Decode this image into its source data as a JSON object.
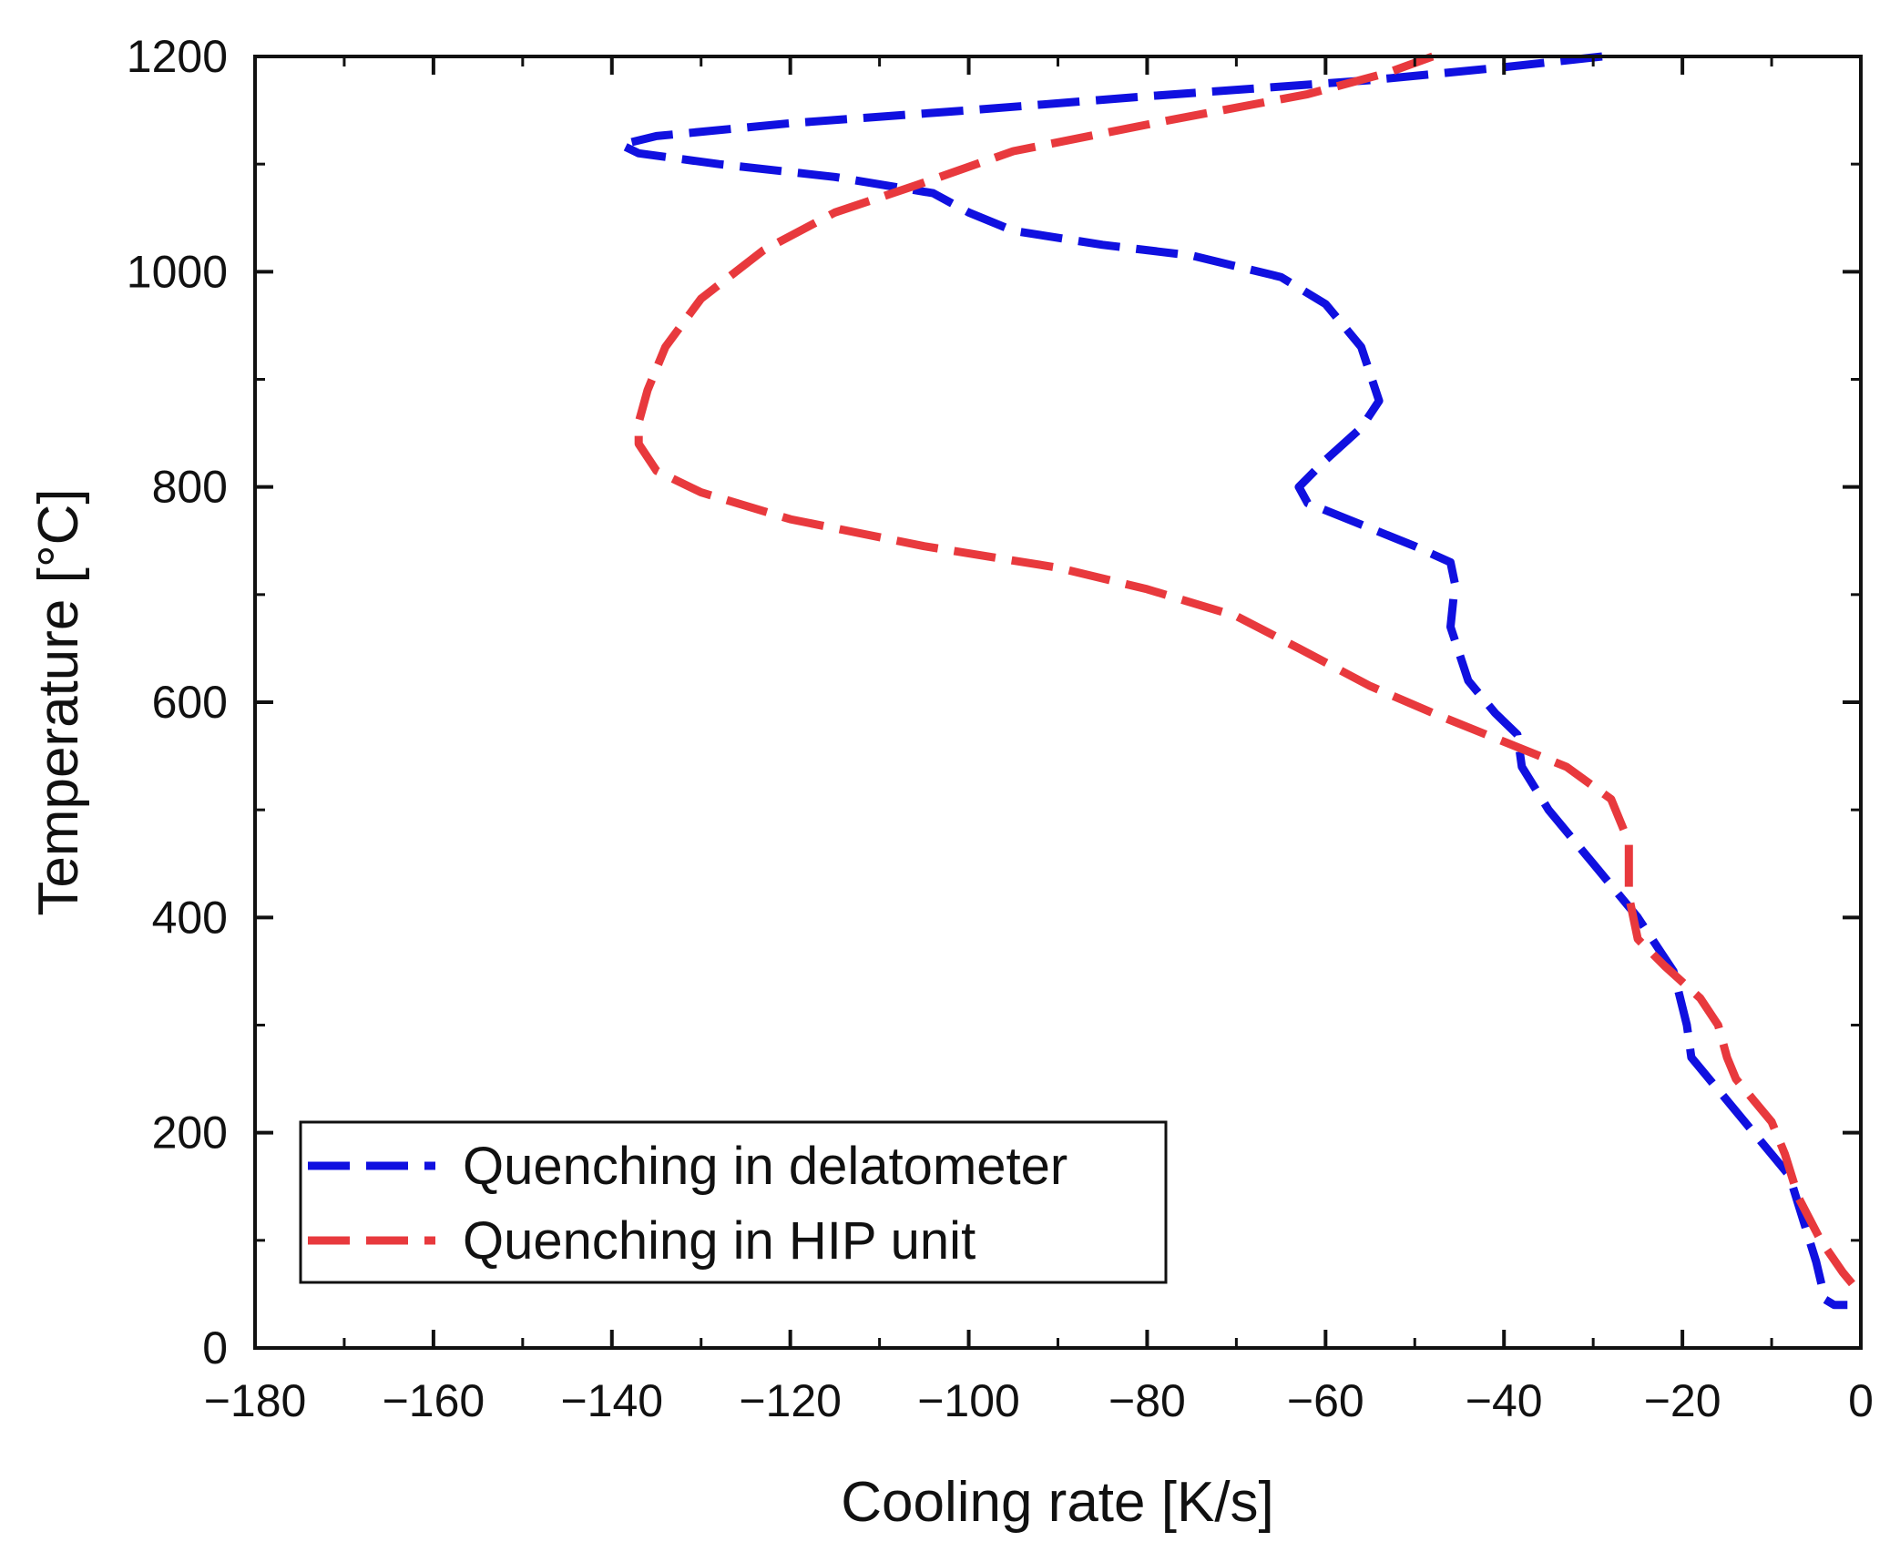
{
  "chart_data": {
    "type": "line",
    "title": "",
    "xlabel": "Cooling rate [K/s]",
    "ylabel": "Temperature [°C]",
    "xlim": [
      -180,
      0
    ],
    "ylim": [
      0,
      1200
    ],
    "x_ticks": [
      -180,
      -160,
      -140,
      -120,
      -100,
      -80,
      -60,
      -40,
      -20,
      0
    ],
    "y_ticks": [
      0,
      200,
      400,
      600,
      800,
      1000,
      1200
    ],
    "x_tick_labels": [
      "−180",
      "−160",
      "−140",
      "−120",
      "−100",
      "−80",
      "−60",
      "−40",
      "−20",
      "0"
    ],
    "y_tick_labels": [
      "0",
      "200",
      "400",
      "600",
      "800",
      "1000",
      "1200"
    ],
    "grid": false,
    "legend_position": "bottom-left",
    "series": [
      {
        "name": "Quenching in delatometer",
        "color": "#1010e0",
        "line_style": "dashed",
        "points": [
          [
            -29,
            1200
          ],
          [
            -40,
            1190
          ],
          [
            -55,
            1178
          ],
          [
            -80,
            1163
          ],
          [
            -100,
            1150
          ],
          [
            -120,
            1138
          ],
          [
            -135,
            1126
          ],
          [
            -139,
            1118
          ],
          [
            -137,
            1110
          ],
          [
            -128,
            1100
          ],
          [
            -115,
            1088
          ],
          [
            -104,
            1073
          ],
          [
            -100,
            1055
          ],
          [
            -95,
            1038
          ],
          [
            -85,
            1025
          ],
          [
            -75,
            1015
          ],
          [
            -65,
            995
          ],
          [
            -60,
            970
          ],
          [
            -56,
            930
          ],
          [
            -54,
            880
          ],
          [
            -56,
            855
          ],
          [
            -60,
            825
          ],
          [
            -63,
            800
          ],
          [
            -62,
            785
          ],
          [
            -56,
            765
          ],
          [
            -50,
            745
          ],
          [
            -46,
            730
          ],
          [
            -45.5,
            710
          ],
          [
            -46,
            670
          ],
          [
            -44,
            620
          ],
          [
            -41,
            590
          ],
          [
            -38.5,
            570
          ],
          [
            -38,
            540
          ],
          [
            -35,
            500
          ],
          [
            -30,
            450
          ],
          [
            -25,
            400
          ],
          [
            -21,
            350
          ],
          [
            -19.5,
            300
          ],
          [
            -19,
            270
          ],
          [
            -16,
            240
          ],
          [
            -12,
            200
          ],
          [
            -8,
            160
          ],
          [
            -6.5,
            120
          ],
          [
            -5,
            80
          ],
          [
            -4,
            45
          ],
          [
            -3,
            40
          ],
          [
            -1.5,
            40
          ]
        ]
      },
      {
        "name": "Quenching in HIP unit",
        "color": "#e8393d",
        "line_style": "dashed",
        "points": [
          [
            -48,
            1200
          ],
          [
            -53,
            1185
          ],
          [
            -62,
            1165
          ],
          [
            -78,
            1140
          ],
          [
            -95,
            1112
          ],
          [
            -106,
            1080
          ],
          [
            -115,
            1055
          ],
          [
            -123,
            1020
          ],
          [
            -130,
            975
          ],
          [
            -134,
            930
          ],
          [
            -136,
            890
          ],
          [
            -137,
            860
          ],
          [
            -137,
            840
          ],
          [
            -135,
            815
          ],
          [
            -130,
            795
          ],
          [
            -120,
            770
          ],
          [
            -105,
            745
          ],
          [
            -90,
            725
          ],
          [
            -80,
            705
          ],
          [
            -70,
            680
          ],
          [
            -63,
            650
          ],
          [
            -55,
            615
          ],
          [
            -48,
            590
          ],
          [
            -42,
            570
          ],
          [
            -33,
            540
          ],
          [
            -28,
            510
          ],
          [
            -26,
            470
          ],
          [
            -26,
            420
          ],
          [
            -25,
            380
          ],
          [
            -22,
            355
          ],
          [
            -18,
            325
          ],
          [
            -16,
            300
          ],
          [
            -15,
            270
          ],
          [
            -14,
            250
          ],
          [
            -12,
            230
          ],
          [
            -10,
            210
          ],
          [
            -8.5,
            180
          ],
          [
            -7,
            140
          ],
          [
            -4.5,
            100
          ],
          [
            -2,
            70
          ],
          [
            0,
            50
          ]
        ]
      }
    ]
  }
}
